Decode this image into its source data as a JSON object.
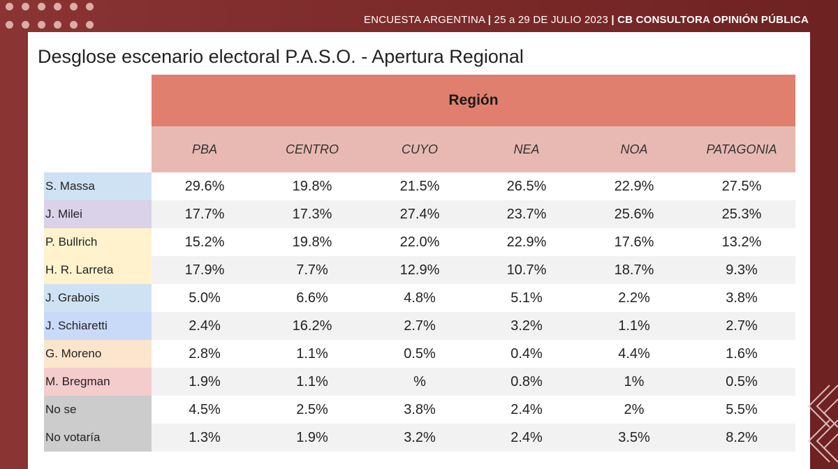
{
  "header": {
    "survey": "ENCUESTA ARGENTINA",
    "dates": "25 a 29 DE JULIO 2023",
    "source": "CB CONSULTORA OPINIÓN PÚBLICA"
  },
  "title": "Desglose escenario electoral P.A.S.O. - Apertura Regional",
  "region_label": "Región",
  "columns": [
    "PBA",
    "CENTRO",
    "CUYO",
    "NEA",
    "NOA",
    "PATAGONIA"
  ],
  "rows": [
    {
      "name": "S. Massa",
      "color": "#cfe2f3",
      "values": [
        "29.6%",
        "19.8%",
        "21.5%",
        "26.5%",
        "22.9%",
        "27.5%"
      ]
    },
    {
      "name": "J. Milei",
      "color": "#d9d2e9",
      "values": [
        "17.7%",
        "17.3%",
        "27.4%",
        "23.7%",
        "25.6%",
        "25.3%"
      ]
    },
    {
      "name": "P. Bullrich",
      "color": "#fff2cc",
      "values": [
        "15.2%",
        "19.8%",
        "22.0%",
        "22.9%",
        "17.6%",
        "13.2%"
      ]
    },
    {
      "name": "H. R. Larreta",
      "color": "#fff2cc",
      "values": [
        "17.9%",
        "7.7%",
        "12.9%",
        "10.7%",
        "18.7%",
        "9.3%"
      ]
    },
    {
      "name": "J. Grabois",
      "color": "#cfe2f3",
      "values": [
        "5.0%",
        "6.6%",
        "4.8%",
        "5.1%",
        "2.2%",
        "3.8%"
      ]
    },
    {
      "name": "J. Schiaretti",
      "color": "#c9daf8",
      "values": [
        "2.4%",
        "16.2%",
        "2.7%",
        "3.2%",
        "1.1%",
        "2.7%"
      ]
    },
    {
      "name": "G. Moreno",
      "color": "#fce5cd",
      "values": [
        "2.8%",
        "1.1%",
        "0.5%",
        "0.4%",
        "4.4%",
        "1.6%"
      ]
    },
    {
      "name": "M. Bregman",
      "color": "#f4cccc",
      "values": [
        "1.9%",
        "1.1%",
        "%",
        "0.8%",
        "1%",
        "0.5%"
      ]
    },
    {
      "name": "No se",
      "color": "#cccccc",
      "values": [
        "4.5%",
        "2.5%",
        "3.8%",
        "2.4%",
        "2%",
        "5.5%"
      ]
    },
    {
      "name": "No votaría",
      "color": "#cccccc",
      "values": [
        "1.3%",
        "1.9%",
        "3.2%",
        "2.4%",
        "3.5%",
        "8.2%"
      ]
    }
  ]
}
